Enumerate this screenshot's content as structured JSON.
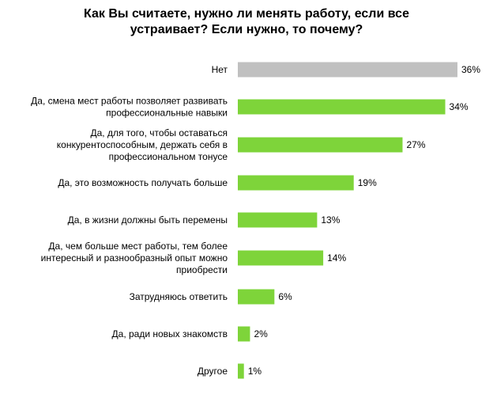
{
  "chart_data": {
    "type": "bar",
    "orientation": "horizontal",
    "title_lines": [
      "Как Вы считаете, нужно ли менять работу, если все",
      "устраивает? Если нужно, то почему?"
    ],
    "categories": [
      [
        "Нет"
      ],
      [
        "Да, смена мест работы позволяет развивать",
        "профессиональные  навыки"
      ],
      [
        "Да, для того,  чтобы оставаться",
        "конкурентоспособным,  держать себя в",
        "профессиональном  тонусе"
      ],
      [
        "Да, это возможность  получать  больше"
      ],
      [
        "Да, в жизни должны быть  перемены"
      ],
      [
        "Да, чем больше мест работы,  тем более",
        "интересный  и разнообразный  опыт можно",
        "приобрести"
      ],
      [
        "Затрудняюсь  ответить"
      ],
      [
        "Да, ради новых знакомств"
      ],
      [
        "Другое"
      ]
    ],
    "values": [
      36,
      34,
      27,
      19,
      13,
      14,
      6,
      2,
      1
    ],
    "value_labels": [
      "36%",
      "34%",
      "27%",
      "19%",
      "13%",
      "14%",
      "6%",
      "2%",
      "1%"
    ],
    "bar_colors": [
      "#c0c0c0",
      "#7ed43a",
      "#7ed43a",
      "#7ed43a",
      "#7ed43a",
      "#7ed43a",
      "#7ed43a",
      "#7ed43a",
      "#7ed43a"
    ],
    "xlim": [
      0,
      36
    ],
    "grid": false,
    "legend": "none"
  }
}
